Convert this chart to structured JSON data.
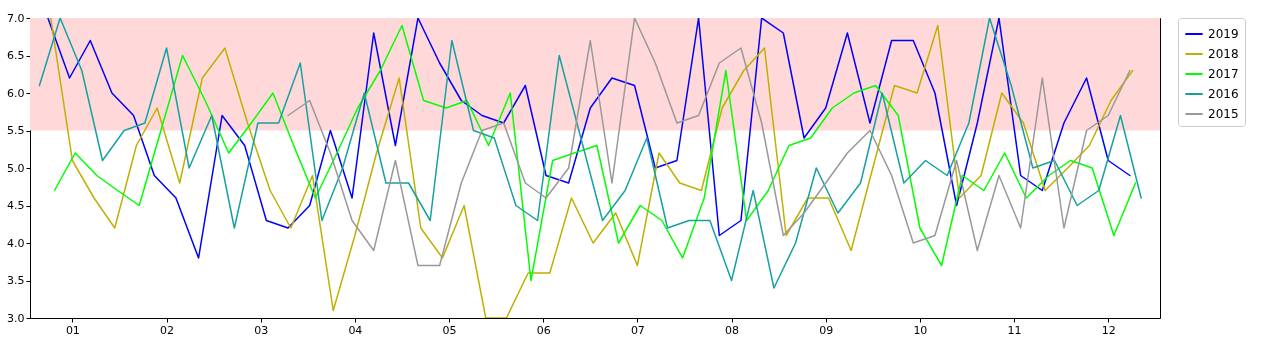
{
  "chart_data": {
    "type": "line",
    "xlim": [
      0.55,
      12.55
    ],
    "xticks": [
      {
        "value": 1,
        "label": "01"
      },
      {
        "value": 2,
        "label": "02"
      },
      {
        "value": 3,
        "label": "03"
      },
      {
        "value": 4,
        "label": "04"
      },
      {
        "value": 5,
        "label": "05"
      },
      {
        "value": 6,
        "label": "06"
      },
      {
        "value": 7,
        "label": "07"
      },
      {
        "value": 8,
        "label": "08"
      },
      {
        "value": 9,
        "label": "09"
      },
      10,
      11,
      12
    ],
    "ylim": [
      3,
      7
    ],
    "yticks": [
      {
        "value": 3,
        "label": "3.0"
      },
      3.5,
      {
        "value": 4,
        "label": "4.0"
      },
      4.5,
      {
        "value": 5,
        "label": "5.0"
      },
      5.5,
      {
        "value": 6,
        "label": "6.0"
      },
      6.5,
      {
        "value": 7,
        "label": "7.0"
      }
    ],
    "grid": false,
    "legend": "top right",
    "bands": [
      {
        "axis": "y",
        "from": 5.5,
        "to": 7.0,
        "color": "#ffd9d9"
      }
    ],
    "series": [
      {
        "name": "2019",
        "color": "#0000ff",
        "x": [
          0.74,
          0.97,
          1.19,
          1.42,
          1.65,
          1.87,
          2.1,
          2.34,
          2.59,
          2.83,
          3.06,
          3.29,
          3.52,
          3.74,
          3.97,
          4.2,
          4.43,
          4.67,
          4.9,
          5.13,
          5.35,
          5.58,
          5.81,
          6.03,
          6.27,
          6.5,
          6.73,
          6.97,
          7.19,
          7.42,
          7.65,
          7.87,
          8.1,
          8.32,
          8.55,
          8.77,
          9.0,
          9.23,
          9.47,
          9.7,
          9.93,
          10.16,
          10.39,
          10.61,
          10.84,
          11.07,
          11.3,
          11.53,
          11.77,
          12.0,
          12.23
        ],
        "values": [
          7.0,
          6.2,
          6.7,
          6.0,
          5.7,
          4.9,
          4.6,
          3.8,
          5.7,
          5.3,
          4.3,
          4.2,
          4.5,
          5.5,
          4.6,
          6.8,
          5.3,
          7.0,
          6.4,
          5.9,
          5.7,
          5.6,
          6.1,
          4.9,
          4.8,
          5.8,
          6.2,
          6.1,
          5.0,
          5.1,
          7.0,
          4.1,
          4.3,
          7.0,
          6.8,
          5.4,
          5.8,
          6.8,
          5.6,
          6.7,
          6.7,
          6.0,
          4.5,
          5.6,
          7.0,
          4.9,
          4.7,
          5.6,
          6.2,
          5.1,
          4.9
        ]
      },
      {
        "name": "2018",
        "color": "#bfb000",
        "x": [
          0.77,
          1.0,
          1.23,
          1.45,
          1.68,
          1.9,
          2.14,
          2.38,
          2.62,
          2.86,
          3.1,
          3.32,
          3.55,
          3.77,
          4.0,
          4.23,
          4.47,
          4.7,
          4.93,
          5.16,
          5.39,
          5.61,
          5.84,
          6.07,
          6.3,
          6.53,
          6.77,
          7.0,
          7.23,
          7.45,
          7.68,
          7.9,
          8.13,
          8.35,
          8.58,
          8.81,
          9.03,
          9.27,
          9.5,
          9.73,
          9.97,
          10.19,
          10.42,
          10.65,
          10.87,
          11.1,
          11.33,
          11.57,
          11.8,
          12.03,
          12.26
        ],
        "values": [
          7.0,
          5.1,
          4.6,
          4.2,
          5.3,
          5.8,
          4.8,
          6.2,
          6.6,
          5.6,
          4.7,
          4.2,
          4.9,
          3.1,
          4.1,
          5.2,
          6.2,
          4.2,
          3.8,
          4.5,
          3.0,
          3.0,
          3.6,
          3.6,
          4.6,
          4.0,
          4.4,
          3.7,
          5.2,
          4.8,
          4.7,
          5.8,
          6.3,
          6.6,
          4.1,
          4.6,
          4.6,
          3.9,
          5.0,
          6.1,
          6.0,
          6.9,
          4.6,
          4.9,
          6.0,
          5.6,
          4.7,
          5.0,
          5.3,
          5.9,
          6.3
        ]
      },
      {
        "name": "2017",
        "color": "#00ff00",
        "x": [
          0.81,
          1.03,
          1.26,
          1.48,
          1.71,
          1.94,
          2.17,
          2.41,
          2.66,
          2.9,
          3.13,
          3.35,
          3.58,
          3.81,
          4.03,
          4.27,
          4.5,
          4.73,
          4.97,
          5.19,
          5.42,
          5.65,
          5.87,
          6.1,
          6.33,
          6.57,
          6.8,
          7.03,
          7.26,
          7.48,
          7.71,
          7.94,
          8.16,
          8.39,
          8.61,
          8.84,
          9.07,
          9.3,
          9.53,
          9.77,
          10.0,
          10.23,
          10.45,
          10.68,
          10.9,
          11.13,
          11.37,
          11.6,
          11.83,
          12.06,
          12.29
        ],
        "values": [
          4.7,
          5.2,
          4.9,
          4.7,
          4.5,
          5.5,
          6.5,
          5.9,
          5.2,
          5.6,
          6.0,
          5.3,
          4.6,
          5.2,
          5.8,
          6.3,
          6.9,
          5.9,
          5.8,
          5.9,
          5.3,
          6.0,
          3.5,
          5.1,
          5.2,
          5.3,
          4.0,
          4.5,
          4.3,
          3.8,
          4.6,
          6.3,
          4.3,
          4.7,
          5.3,
          5.4,
          5.8,
          6.0,
          6.1,
          5.7,
          4.2,
          3.7,
          4.9,
          4.7,
          5.2,
          4.6,
          4.9,
          5.1,
          5.0,
          4.1,
          4.8
        ]
      },
      {
        "name": "2016",
        "color": "#17a0a0",
        "x": [
          0.65,
          0.87,
          1.1,
          1.32,
          1.55,
          1.77,
          2.0,
          2.24,
          2.48,
          2.72,
          2.97,
          3.19,
          3.42,
          3.65,
          3.87,
          4.1,
          4.33,
          4.57,
          4.8,
          5.03,
          5.26,
          5.48,
          5.71,
          5.94,
          6.17,
          6.4,
          6.63,
          6.87,
          7.1,
          7.32,
          7.55,
          7.77,
          8.0,
          8.23,
          8.45,
          8.68,
          8.9,
          9.13,
          9.37,
          9.6,
          9.83,
          10.06,
          10.29,
          10.52,
          10.74,
          10.97,
          11.2,
          11.43,
          11.67,
          11.9,
          12.13,
          12.35
        ],
        "values": [
          6.1,
          7.0,
          6.3,
          5.1,
          5.5,
          5.6,
          6.6,
          5.0,
          5.7,
          4.2,
          5.6,
          5.6,
          6.4,
          4.3,
          5.0,
          6.0,
          4.8,
          4.8,
          4.3,
          6.7,
          5.5,
          5.4,
          4.5,
          4.3,
          6.5,
          5.4,
          4.3,
          4.7,
          5.4,
          4.2,
          4.3,
          4.3,
          3.5,
          4.7,
          3.4,
          4.0,
          5.0,
          4.4,
          4.8,
          6.0,
          4.8,
          5.1,
          4.9,
          5.6,
          7.0,
          6.1,
          5.0,
          5.1,
          4.5,
          4.7,
          5.7,
          4.6
        ]
      },
      {
        "name": "2015",
        "color": "#999999",
        "x": [
          3.29,
          3.52,
          3.74,
          3.97,
          4.2,
          4.43,
          4.67,
          4.9,
          5.13,
          5.35,
          5.58,
          5.81,
          6.03,
          6.27,
          6.5,
          6.73,
          6.97,
          7.19,
          7.42,
          7.65,
          7.87,
          8.1,
          8.32,
          8.55,
          8.77,
          9.0,
          9.23,
          9.47,
          9.7,
          9.93,
          10.16,
          10.39,
          10.61,
          10.84,
          11.07,
          11.3,
          11.53,
          11.77,
          12.0,
          12.23
        ],
        "values": [
          5.7,
          5.9,
          5.2,
          4.3,
          3.9,
          5.1,
          3.7,
          3.7,
          4.8,
          5.5,
          5.6,
          4.8,
          4.6,
          5.0,
          6.7,
          4.8,
          7.0,
          6.4,
          5.6,
          5.7,
          6.4,
          6.6,
          5.6,
          4.1,
          4.4,
          4.8,
          5.2,
          5.5,
          4.9,
          4.0,
          4.1,
          5.1,
          3.9,
          4.9,
          4.2,
          6.2,
          4.2,
          5.5,
          5.7,
          6.3
        ]
      }
    ]
  }
}
